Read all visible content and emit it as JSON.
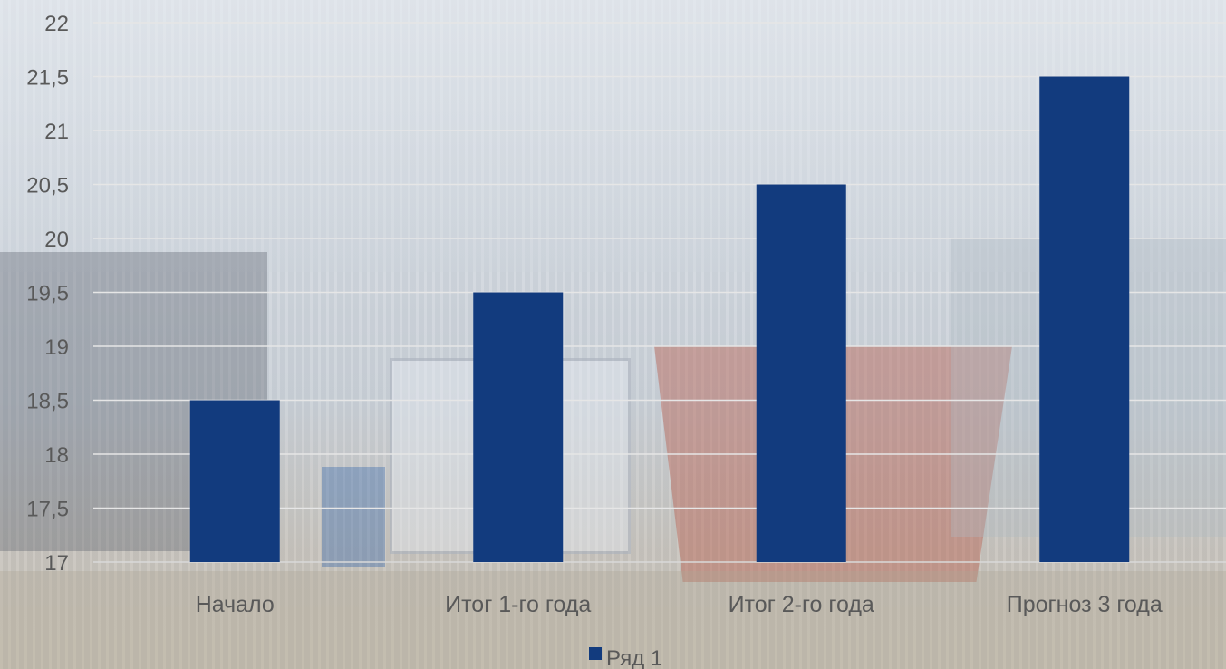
{
  "chart_data": {
    "type": "bar",
    "categories": [
      "Начало",
      "Итог 1-го года",
      "Итог 2-го года",
      "Прогноз 3 года"
    ],
    "series": [
      {
        "name": "Ряд 1",
        "values": [
          18.5,
          19.5,
          20.5,
          21.5
        ],
        "color": "#123b7e"
      }
    ],
    "ylim": [
      17,
      22
    ],
    "yticks": [
      "17",
      "17,5",
      "18",
      "18,5",
      "19",
      "19,5",
      "20",
      "20,5",
      "21",
      "21,5",
      "22"
    ],
    "grid": true,
    "legend_position": "bottom",
    "gridline_color": "#e6e6e6",
    "label_color": "#595959"
  }
}
